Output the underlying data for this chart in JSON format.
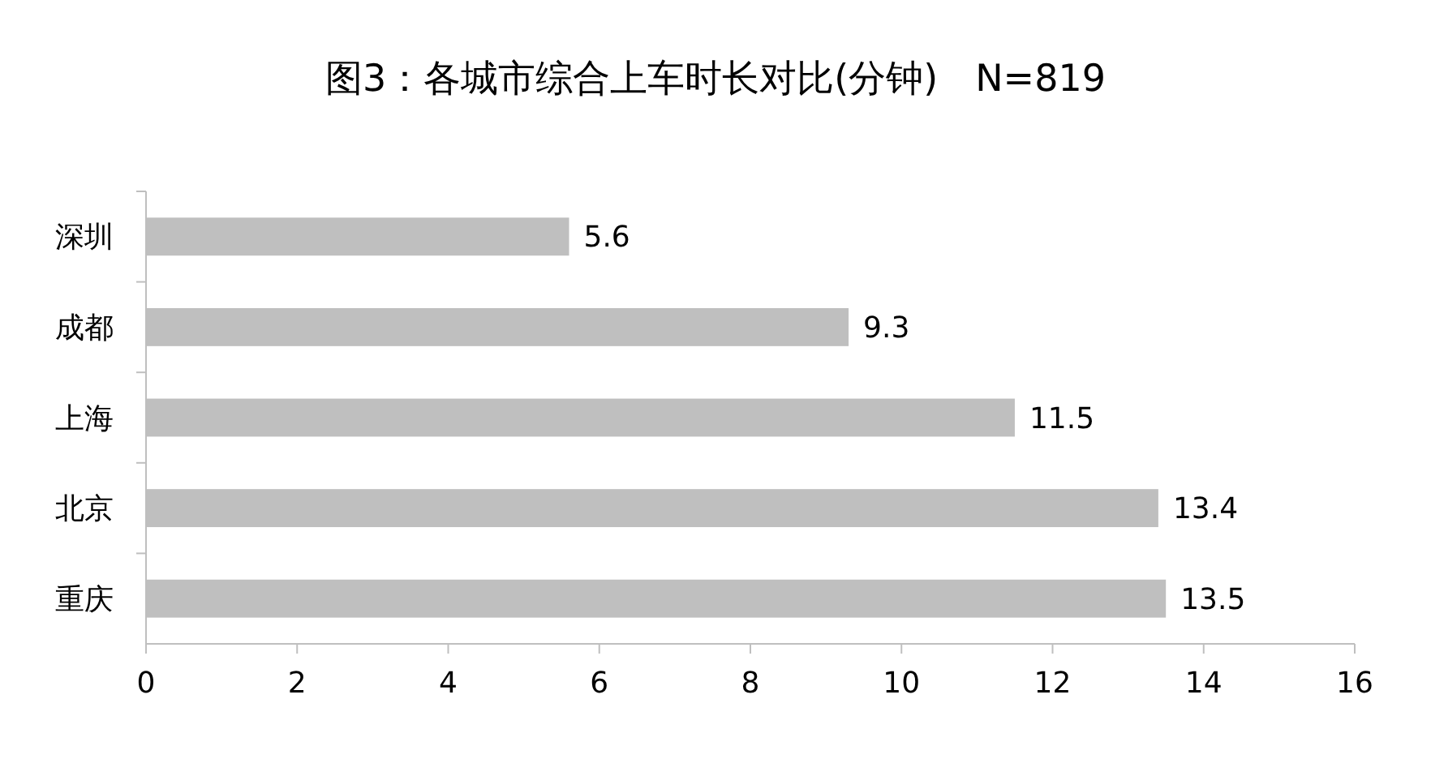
{
  "chart_data": {
    "type": "bar",
    "orientation": "horizontal",
    "title": "图3：各城市综合上车时长对比(分钟)　N=819",
    "categories": [
      "深圳",
      "成都",
      "上海",
      "北京",
      "重庆"
    ],
    "values": [
      5.6,
      9.3,
      11.5,
      13.4,
      13.5
    ],
    "color": "#bfbfbf",
    "xlim": [
      0,
      16
    ],
    "xticks": [
      0,
      2,
      4,
      6,
      8,
      10,
      12,
      14,
      16
    ],
    "grid": false,
    "data_labels": true
  }
}
